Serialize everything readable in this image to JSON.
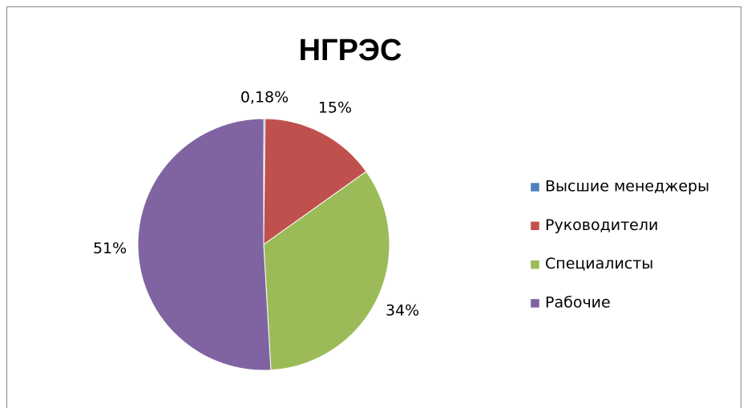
{
  "chart_data": {
    "type": "pie",
    "title": "НГРЭС",
    "categories": [
      "Высшие менеджеры",
      "Руководители",
      "Специалисты",
      "Рабочие"
    ],
    "values": [
      0.18,
      15,
      34,
      51
    ],
    "value_labels": [
      "0,18%",
      "15%",
      "34%",
      "51%"
    ],
    "colors": [
      "#4f81bd",
      "#c0504d",
      "#9bbb59",
      "#8064a2"
    ],
    "legend": "right"
  }
}
